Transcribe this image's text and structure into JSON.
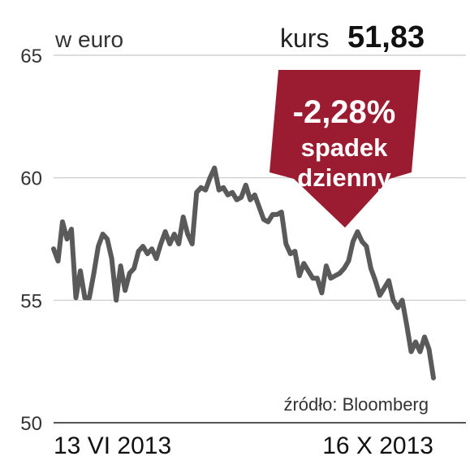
{
  "chart_data": {
    "type": "line",
    "unit_label": "w euro",
    "current_label": "kurs",
    "current_value": "51,83",
    "badge": {
      "change": "-2,28%",
      "line1": "spadek",
      "line2": "dzienny",
      "color": "#9b1b30"
    },
    "source": "źródło: Bloomberg",
    "x_start_label": "13 VI 2013",
    "x_end_label": "16 X 2013",
    "ylim": [
      50,
      65
    ],
    "yticks": [
      50,
      55,
      60,
      65
    ],
    "grid": true,
    "line_color": "#5a5a5a",
    "values": [
      57.1,
      56.6,
      58.2,
      57.5,
      57.9,
      55.1,
      56.2,
      55.1,
      55.1,
      56.1,
      57.2,
      57.7,
      57.5,
      56.7,
      55.0,
      56.4,
      55.4,
      56.1,
      56.3,
      57.0,
      57.2,
      56.9,
      57.1,
      56.7,
      57.3,
      57.8,
      57.3,
      57.7,
      57.3,
      58.4,
      57.7,
      57.3,
      59.4,
      59.6,
      59.5,
      60.0,
      60.4,
      59.5,
      59.6,
      59.3,
      59.4,
      59.1,
      59.2,
      59.7,
      59.1,
      59.3,
      58.8,
      58.3,
      58.2,
      58.5,
      58.5,
      58.6,
      57.3,
      56.9,
      57.0,
      56.0,
      56.5,
      56.2,
      55.9,
      55.9,
      55.3,
      56.4,
      55.9,
      56.0,
      56.1,
      56.3,
      56.6,
      57.4,
      57.8,
      57.4,
      57.2,
      56.3,
      55.8,
      55.2,
      55.5,
      55.8,
      55.0,
      54.7,
      55.0,
      54.0,
      52.9,
      53.3,
      52.9,
      53.5,
      53.0,
      51.83
    ]
  }
}
